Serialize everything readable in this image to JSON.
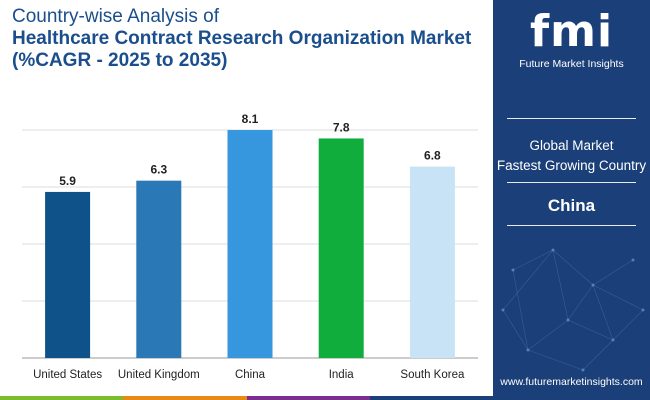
{
  "title": {
    "line1": "Country-wise Analysis of",
    "line2": "Healthcare Contract Research Organization Market",
    "line3": "(%CAGR - 2025 to 2035)"
  },
  "chart_data": {
    "type": "bar",
    "categories": [
      "United States",
      "United Kingdom",
      "China",
      "India",
      "South Korea"
    ],
    "values": [
      5.9,
      6.3,
      8.1,
      7.8,
      6.8
    ],
    "colors": [
      "#0f5189",
      "#2a78b5",
      "#3697de",
      "#10ad3d",
      "#c9e3f6"
    ],
    "ylim": [
      0,
      8.1
    ],
    "grid": true,
    "legend": "none"
  },
  "side_panel": {
    "logo_letters": "fmi",
    "logo_subtitle": "Future Market Insights",
    "heading_line1": "Global Market",
    "heading_line2": "Fastest Growing Country",
    "value": "China",
    "website": "www.futuremarketinsights.com"
  },
  "colors": {
    "panel_bg": "#1b3f78",
    "title": "#1a4e8c",
    "strip": [
      "#7bbd2c",
      "#e98a15",
      "#7a2e8f",
      "#1b3f78"
    ]
  }
}
